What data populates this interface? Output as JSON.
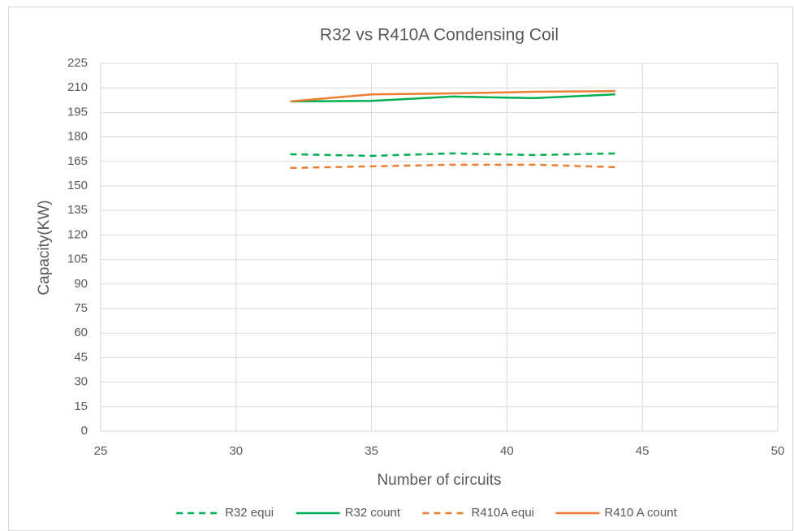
{
  "chart_data": {
    "type": "line",
    "title": "R32 vs R410A Condensing  Coil",
    "xlabel": "Number of circuits",
    "ylabel": "Capacity(KW)",
    "x": [
      32,
      35,
      38,
      41,
      44
    ],
    "series": [
      {
        "name": "R32 equi",
        "color": "#00b050",
        "style": "dashed",
        "values": [
          169.4,
          168.4,
          169.9,
          168.9,
          169.9
        ]
      },
      {
        "name": "R32 count",
        "color": "#00b050",
        "style": "solid",
        "values": [
          201.7,
          202,
          204.7,
          203.7,
          206
        ]
      },
      {
        "name": "R410A equi",
        "color": "#ed7d31",
        "style": "dashed",
        "values": [
          161,
          162,
          163,
          163,
          161.5
        ]
      },
      {
        "name": "R410 A count",
        "color": "#ed7d31",
        "style": "solid",
        "values": [
          201.7,
          206,
          206.6,
          207.6,
          208
        ]
      }
    ],
    "xlim": [
      25,
      50
    ],
    "xticks": [
      25,
      30,
      35,
      40,
      45,
      50
    ],
    "ylim": [
      0,
      225
    ],
    "yticks": [
      0,
      15,
      30,
      45,
      60,
      75,
      90,
      105,
      120,
      135,
      150,
      165,
      180,
      195,
      210,
      225
    ],
    "grid": true,
    "legend": "bottom"
  }
}
